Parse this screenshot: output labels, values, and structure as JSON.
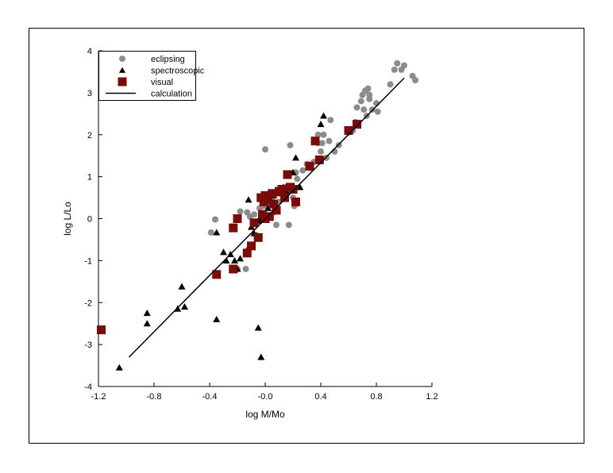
{
  "chart_data": {
    "type": "scatter",
    "title": "",
    "xlabel": "log M/Mo",
    "ylabel": "log L/Lo",
    "xlim": [
      -1.2,
      1.2
    ],
    "ylim": [
      -4,
      4
    ],
    "x_ticks": [
      "-1.2",
      "-0.8",
      "-0.4",
      "-0.0",
      "0.4",
      "0.8",
      "1.2"
    ],
    "y_ticks": [
      "-4",
      "-3",
      "-2",
      "-1",
      "0",
      "1",
      "2",
      "3",
      "4"
    ],
    "grid": false,
    "legend_position": "top-left",
    "legend": [
      {
        "label": "eclipsing",
        "marker": "circle",
        "color": "#8c8c8c"
      },
      {
        "label": "spectroscopic",
        "marker": "triangle",
        "color": "#000000"
      },
      {
        "label": "visual",
        "marker": "square",
        "color": "#7b0a0a"
      },
      {
        "label": "calculation",
        "marker": "line",
        "color": "#000000"
      }
    ],
    "series": [
      {
        "name": "eclipsing",
        "points": [
          [
            -0.39,
            -0.33
          ],
          [
            -0.36,
            -0.02
          ],
          [
            -0.2,
            -1.2
          ],
          [
            -0.18,
            0.17
          ],
          [
            -0.14,
            -1.2
          ],
          [
            -0.13,
            0.15
          ],
          [
            -0.11,
            0.05
          ],
          [
            -0.08,
            0.1
          ],
          [
            -0.04,
            0.25
          ],
          [
            -0.02,
            0.05
          ],
          [
            -0.01,
            0.3
          ],
          [
            0.0,
            1.65
          ],
          [
            0.02,
            0.35
          ],
          [
            0.05,
            0.45
          ],
          [
            0.06,
            0.15
          ],
          [
            0.08,
            -0.15
          ],
          [
            0.1,
            0.4
          ],
          [
            0.12,
            0.6
          ],
          [
            0.15,
            0.75
          ],
          [
            0.17,
            -0.15
          ],
          [
            0.18,
            1.75
          ],
          [
            0.2,
            0.5
          ],
          [
            0.21,
            0.3
          ],
          [
            0.22,
            1.1
          ],
          [
            0.23,
            0.95
          ],
          [
            0.27,
            1.15
          ],
          [
            0.3,
            1.3
          ],
          [
            0.33,
            1.2
          ],
          [
            0.35,
            1.35
          ],
          [
            0.38,
            1.8
          ],
          [
            0.38,
            2.0
          ],
          [
            0.4,
            1.6
          ],
          [
            0.41,
            1.8
          ],
          [
            0.42,
            2.0
          ],
          [
            0.44,
            1.45
          ],
          [
            0.46,
            1.85
          ],
          [
            0.47,
            2.35
          ],
          [
            0.5,
            1.6
          ],
          [
            0.53,
            1.75
          ],
          [
            0.6,
            2.05
          ],
          [
            0.63,
            2.1
          ],
          [
            0.65,
            2.3
          ],
          [
            0.66,
            2.65
          ],
          [
            0.69,
            2.8
          ],
          [
            0.7,
            2.95
          ],
          [
            0.71,
            2.6
          ],
          [
            0.72,
            3.05
          ],
          [
            0.73,
            2.45
          ],
          [
            0.74,
            3.1
          ],
          [
            0.75,
            2.85
          ],
          [
            0.75,
            2.95
          ],
          [
            0.77,
            2.6
          ],
          [
            0.8,
            2.75
          ],
          [
            0.81,
            2.55
          ],
          [
            0.9,
            3.2
          ],
          [
            0.93,
            3.55
          ],
          [
            0.95,
            3.7
          ],
          [
            0.98,
            3.55
          ],
          [
            1.0,
            3.65
          ],
          [
            1.06,
            3.4
          ],
          [
            1.08,
            3.3
          ]
        ]
      },
      {
        "name": "spectroscopic",
        "points": [
          [
            -1.05,
            -3.55
          ],
          [
            -0.85,
            -2.25
          ],
          [
            -0.85,
            -2.5
          ],
          [
            -0.63,
            -2.15
          ],
          [
            -0.6,
            -1.62
          ],
          [
            -0.58,
            -2.1
          ],
          [
            -0.35,
            -2.4
          ],
          [
            -0.35,
            -0.33
          ],
          [
            -0.3,
            -0.8
          ],
          [
            -0.28,
            -1.0
          ],
          [
            -0.25,
            -0.85
          ],
          [
            -0.22,
            -1.0
          ],
          [
            -0.2,
            -1.2
          ],
          [
            -0.18,
            -0.95
          ],
          [
            -0.13,
            -0.75
          ],
          [
            -0.12,
            0.45
          ],
          [
            -0.1,
            -0.2
          ],
          [
            -0.08,
            -0.35
          ],
          [
            -0.06,
            -0.4
          ],
          [
            -0.05,
            -0.05
          ],
          [
            -0.05,
            -2.6
          ],
          [
            -0.03,
            0.0
          ],
          [
            -0.03,
            -3.3
          ],
          [
            0.0,
            0.5
          ],
          [
            0.02,
            0.25
          ],
          [
            0.06,
            0.55
          ],
          [
            0.1,
            0.6
          ],
          [
            0.13,
            0.75
          ],
          [
            0.15,
            0.65
          ],
          [
            0.2,
            1.1
          ],
          [
            0.22,
            1.45
          ],
          [
            0.25,
            0.75
          ],
          [
            0.4,
            2.25
          ],
          [
            0.42,
            2.45
          ]
        ]
      },
      {
        "name": "visual",
        "points": [
          [
            -1.18,
            -2.65
          ],
          [
            -0.35,
            -1.33
          ],
          [
            -0.23,
            -1.2
          ],
          [
            -0.23,
            -0.22
          ],
          [
            -0.2,
            0.0
          ],
          [
            -0.13,
            -0.82
          ],
          [
            -0.1,
            -0.65
          ],
          [
            -0.08,
            -0.1
          ],
          [
            -0.05,
            -0.45
          ],
          [
            -0.03,
            0.5
          ],
          [
            -0.02,
            0.1
          ],
          [
            -0.01,
            0.4
          ],
          [
            0.0,
            0.55
          ],
          [
            0.0,
            0.0
          ],
          [
            0.02,
            0.45
          ],
          [
            0.03,
            0.05
          ],
          [
            0.05,
            0.6
          ],
          [
            0.06,
            0.35
          ],
          [
            0.08,
            0.2
          ],
          [
            0.1,
            0.65
          ],
          [
            0.12,
            0.7
          ],
          [
            0.14,
            0.5
          ],
          [
            0.16,
            1.05
          ],
          [
            0.18,
            0.75
          ],
          [
            0.2,
            0.7
          ],
          [
            0.22,
            0.4
          ],
          [
            0.32,
            1.25
          ],
          [
            0.36,
            1.85
          ],
          [
            0.39,
            1.4
          ],
          [
            0.6,
            2.1
          ],
          [
            0.66,
            2.25
          ]
        ]
      },
      {
        "name": "calculation",
        "type": "line",
        "points": [
          [
            -0.98,
            -3.3
          ],
          [
            1.0,
            3.35
          ]
        ]
      }
    ]
  }
}
